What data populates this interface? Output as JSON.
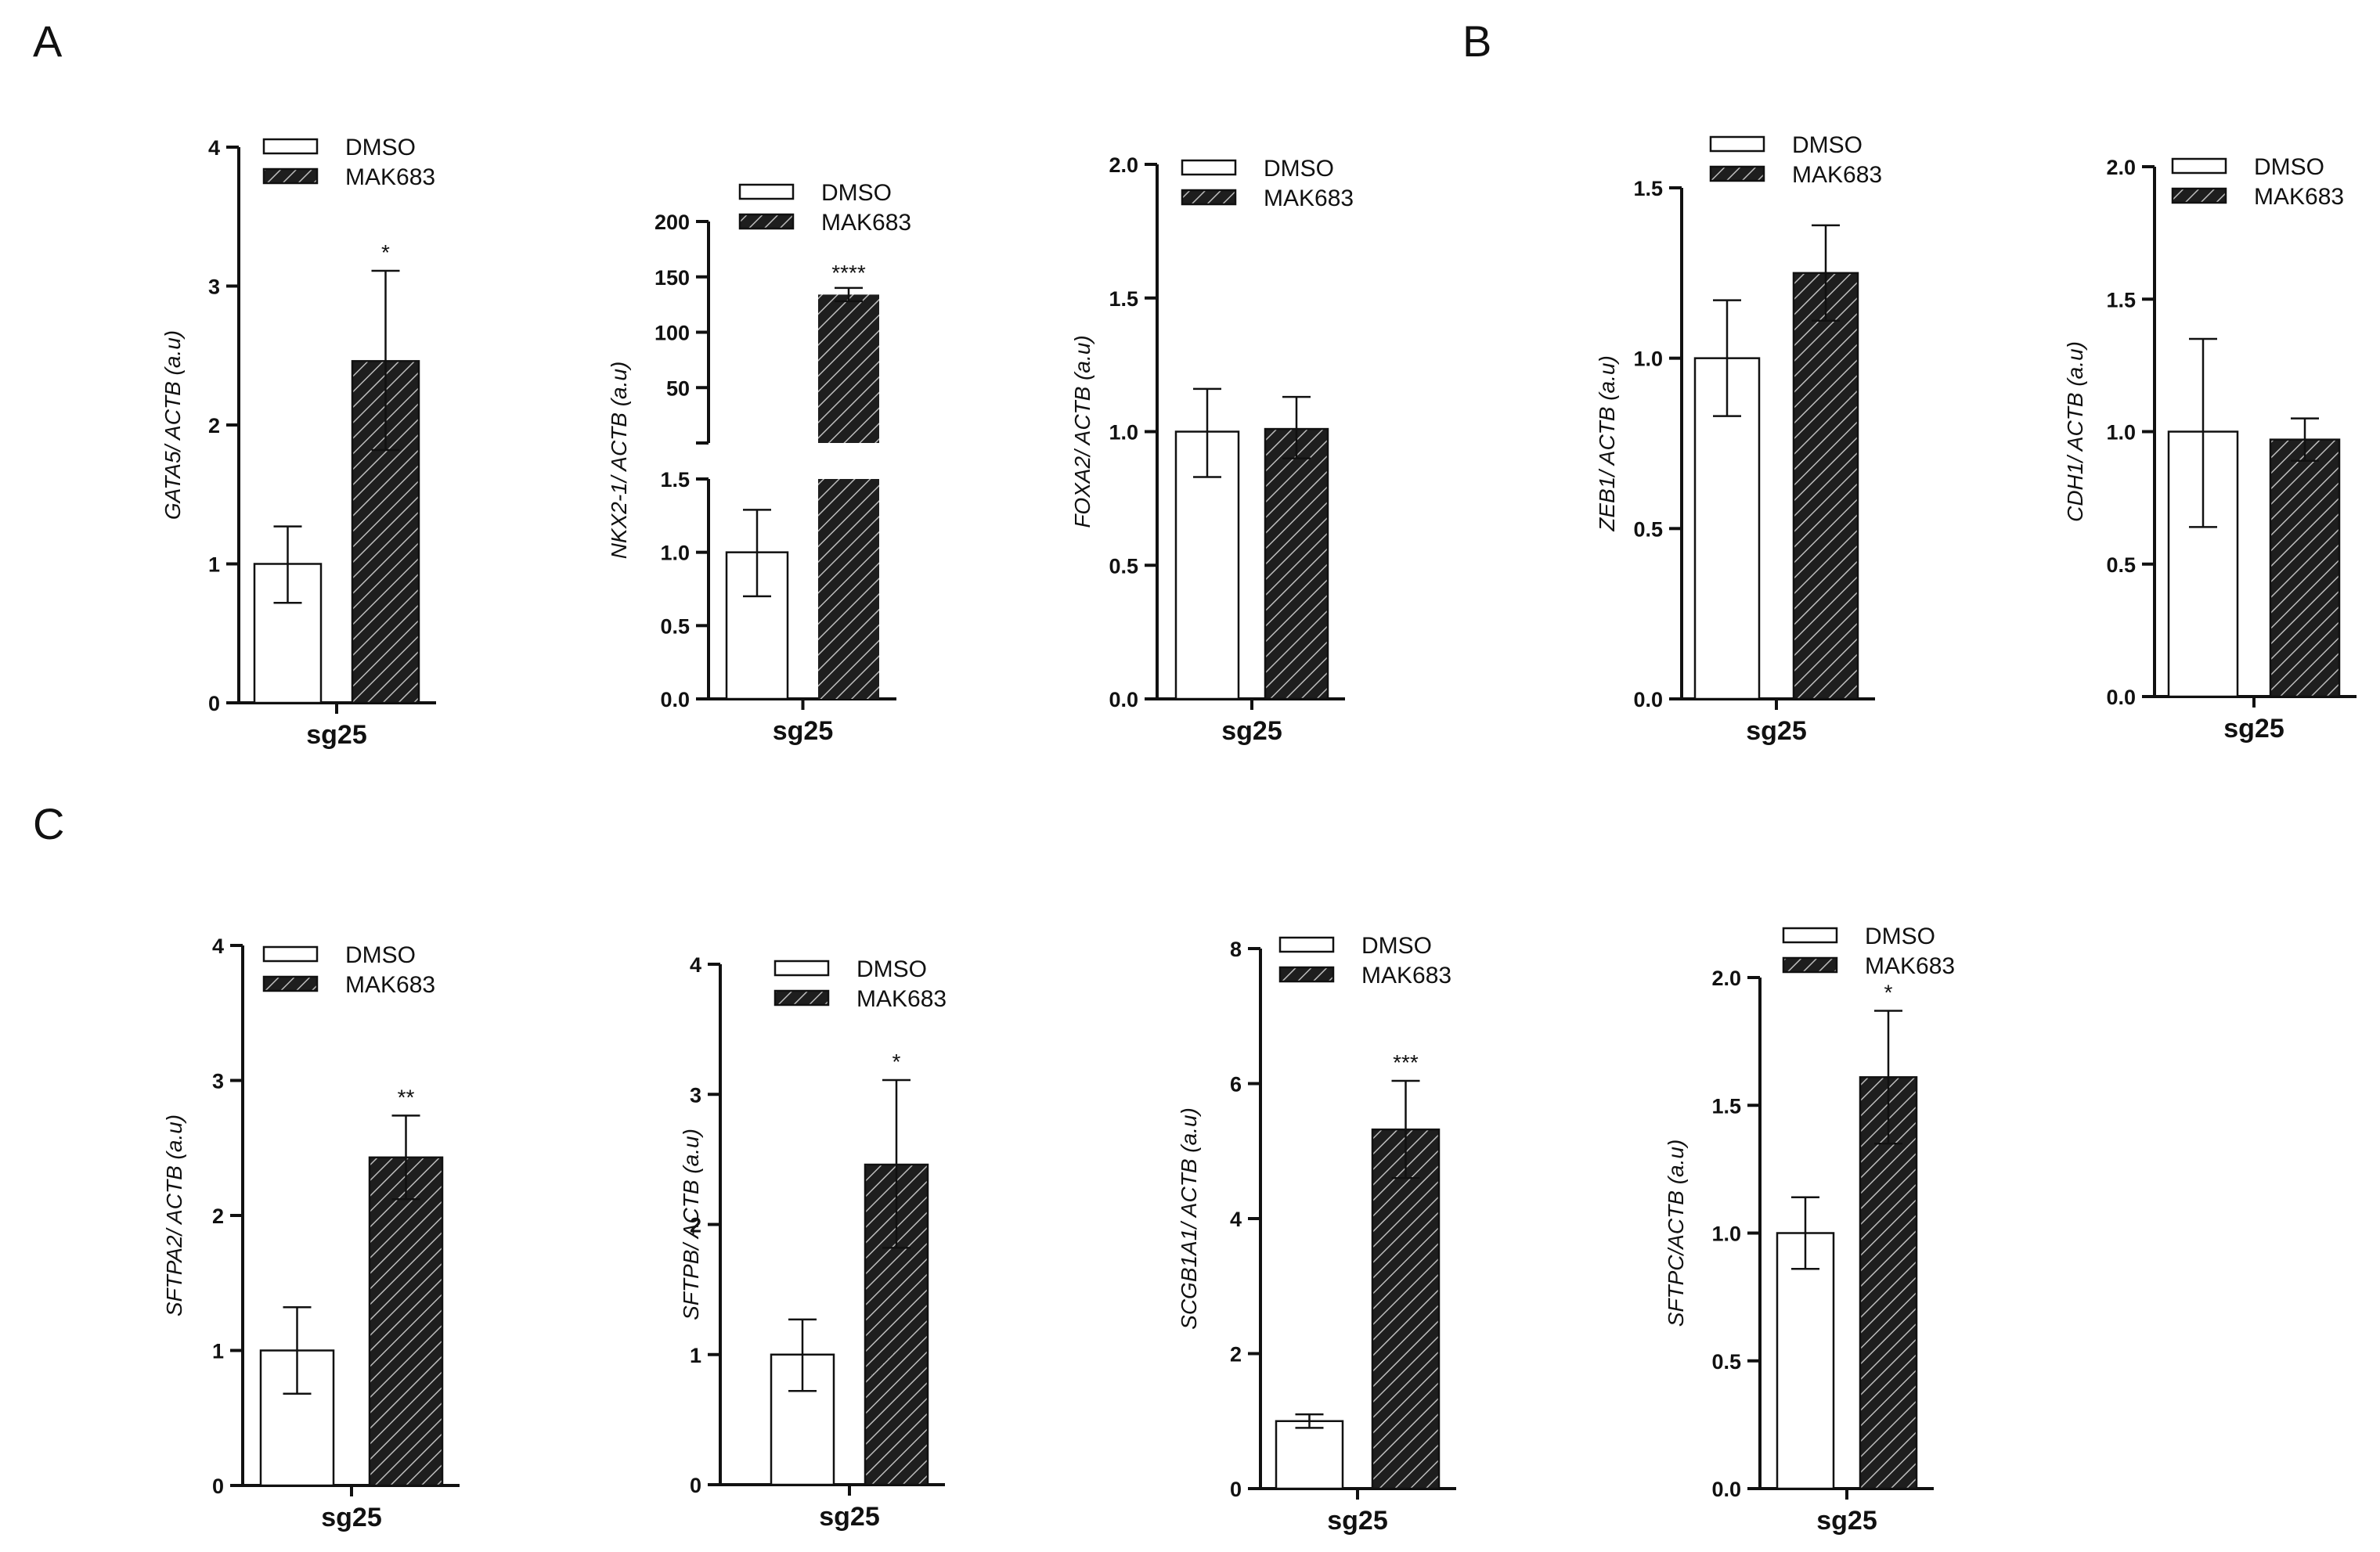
{
  "panels": [
    {
      "letter": "A"
    },
    {
      "letter": "B"
    },
    {
      "letter": "C"
    }
  ],
  "colors": {
    "axis": "#111111",
    "dmso_fill": "#ffffff",
    "mak_fill": "#1e1e1e",
    "hatch": "#bdbdbd"
  },
  "chart_data": [
    {
      "id": "gata5",
      "panel": "A",
      "type": "bar",
      "ylabel": "GATA5/ ACTB (a.u)",
      "xlabel": "sg25",
      "legend": [
        "DMSO",
        "MAK683"
      ],
      "ylim": [
        0,
        4
      ],
      "yticks": [
        0,
        1,
        2,
        3,
        4
      ],
      "ytick_labels": [
        "0",
        "1",
        "2",
        "3",
        "4"
      ],
      "series": [
        {
          "name": "DMSO",
          "value": 1.0,
          "err_low": 0.72,
          "err_high": 1.27
        },
        {
          "name": "MAK683",
          "value": 2.46,
          "err_low": 1.82,
          "err_high": 3.11
        }
      ],
      "significance": "*"
    },
    {
      "id": "nkx21",
      "panel": "A",
      "type": "bar",
      "ylabel": "NKX2-1/ ACTB (a.u)",
      "xlabel": "sg25",
      "legend": [
        "DMSO",
        "MAK683"
      ],
      "broken_axis": true,
      "lower_ylim": [
        0,
        1.5
      ],
      "lower_yticks": [
        0,
        0.5,
        1.0,
        1.5
      ],
      "lower_ytick_labels": [
        "0.0",
        "0.5",
        "1.0",
        "1.5"
      ],
      "upper_ylim": [
        0,
        200
      ],
      "upper_yticks": [
        50,
        100,
        150,
        200
      ],
      "upper_ytick_labels": [
        "50",
        "100",
        "150",
        "200"
      ],
      "series": [
        {
          "name": "DMSO",
          "value": 1.0,
          "err_low": 0.7,
          "err_high": 1.29
        },
        {
          "name": "MAK683",
          "value": 134,
          "err_low": 128,
          "err_high": 140
        }
      ],
      "significance": "****"
    },
    {
      "id": "foxa2",
      "panel": "A",
      "type": "bar",
      "ylabel": "FOXA2/ ACTB (a.u)",
      "xlabel": "sg25",
      "legend": [
        "DMSO",
        "MAK683"
      ],
      "ylim": [
        0,
        2.0
      ],
      "yticks": [
        0,
        0.5,
        1.0,
        1.5,
        2.0
      ],
      "ytick_labels": [
        "0.0",
        "0.5",
        "1.0",
        "1.5",
        "2.0"
      ],
      "series": [
        {
          "name": "DMSO",
          "value": 1.0,
          "err_low": 0.83,
          "err_high": 1.16
        },
        {
          "name": "MAK683",
          "value": 1.01,
          "err_low": 0.9,
          "err_high": 1.13
        }
      ],
      "significance": ""
    },
    {
      "id": "zeb1",
      "panel": "B",
      "type": "bar",
      "ylabel": "ZEB1/ ACTB (a.u)",
      "xlabel": "sg25",
      "legend": [
        "DMSO",
        "MAK683"
      ],
      "ylim": [
        0,
        1.5
      ],
      "yticks": [
        0,
        0.5,
        1.0,
        1.5
      ],
      "ytick_labels": [
        "0.0",
        "0.5",
        "1.0",
        "1.5"
      ],
      "series": [
        {
          "name": "DMSO",
          "value": 1.0,
          "err_low": 0.83,
          "err_high": 1.17
        },
        {
          "name": "MAK683",
          "value": 1.25,
          "err_low": 1.11,
          "err_high": 1.39
        }
      ],
      "significance": ""
    },
    {
      "id": "cdh1",
      "panel": "B",
      "type": "bar",
      "ylabel": "CDH1/ ACTB (a.u)",
      "xlabel": "sg25",
      "legend": [
        "DMSO",
        "MAK683"
      ],
      "ylim": [
        0,
        2.0
      ],
      "yticks": [
        0,
        0.5,
        1.0,
        1.5,
        2.0
      ],
      "ytick_labels": [
        "0.0",
        "0.5",
        "1.0",
        "1.5",
        "2.0"
      ],
      "series": [
        {
          "name": "DMSO",
          "value": 1.0,
          "err_low": 0.64,
          "err_high": 1.35
        },
        {
          "name": "MAK683",
          "value": 0.97,
          "err_low": 0.89,
          "err_high": 1.05
        }
      ],
      "significance": ""
    },
    {
      "id": "sftpa2",
      "panel": "C",
      "type": "bar",
      "ylabel": "SFTPA2/ ACTB (a.u)",
      "xlabel": "sg25",
      "legend": [
        "DMSO",
        "MAK683"
      ],
      "ylim": [
        0,
        4
      ],
      "yticks": [
        0,
        1,
        2,
        3,
        4
      ],
      "ytick_labels": [
        "0",
        "1",
        "2",
        "3",
        "4"
      ],
      "series": [
        {
          "name": "DMSO",
          "value": 1.0,
          "err_low": 0.68,
          "err_high": 1.32
        },
        {
          "name": "MAK683",
          "value": 2.43,
          "err_low": 2.12,
          "err_high": 2.74
        }
      ],
      "significance": "**"
    },
    {
      "id": "sftpb",
      "panel": "C",
      "type": "bar",
      "ylabel": "SFTPB/ ACTB (a.u)",
      "xlabel": "sg25",
      "legend": [
        "DMSO",
        "MAK683"
      ],
      "ylim": [
        0,
        4
      ],
      "yticks": [
        0,
        1,
        2,
        3,
        4
      ],
      "ytick_labels": [
        "0",
        "1",
        "2",
        "3",
        "4"
      ],
      "series": [
        {
          "name": "DMSO",
          "value": 1.0,
          "err_low": 0.72,
          "err_high": 1.27
        },
        {
          "name": "MAK683",
          "value": 2.46,
          "err_low": 1.82,
          "err_high": 3.11
        }
      ],
      "significance": "*"
    },
    {
      "id": "scgb1a1",
      "panel": "C",
      "type": "bar",
      "ylabel": "SCGB1A1/ ACTB (a.u)",
      "xlabel": "sg25",
      "legend": [
        "DMSO",
        "MAK683"
      ],
      "ylim": [
        0,
        8
      ],
      "yticks": [
        0,
        2,
        4,
        6,
        8
      ],
      "ytick_labels": [
        "0",
        "2",
        "4",
        "6",
        "8"
      ],
      "series": [
        {
          "name": "DMSO",
          "value": 1.0,
          "err_low": 0.9,
          "err_high": 1.1
        },
        {
          "name": "MAK683",
          "value": 5.32,
          "err_low": 4.6,
          "err_high": 6.04
        }
      ],
      "significance": "***"
    },
    {
      "id": "sftpc",
      "panel": "C",
      "type": "bar",
      "ylabel": "SFTPC/ACTB (a.u)",
      "xlabel": "sg25",
      "legend": [
        "DMSO",
        "MAK683"
      ],
      "ylim": [
        0,
        2.0
      ],
      "yticks": [
        0,
        0.5,
        1.0,
        1.5,
        2.0
      ],
      "ytick_labels": [
        "0.0",
        "0.5",
        "1.0",
        "1.5",
        "2.0"
      ],
      "series": [
        {
          "name": "DMSO",
          "value": 1.0,
          "err_low": 0.86,
          "err_high": 1.14
        },
        {
          "name": "MAK683",
          "value": 1.61,
          "err_low": 1.35,
          "err_high": 1.87
        }
      ],
      "significance": "*"
    }
  ]
}
